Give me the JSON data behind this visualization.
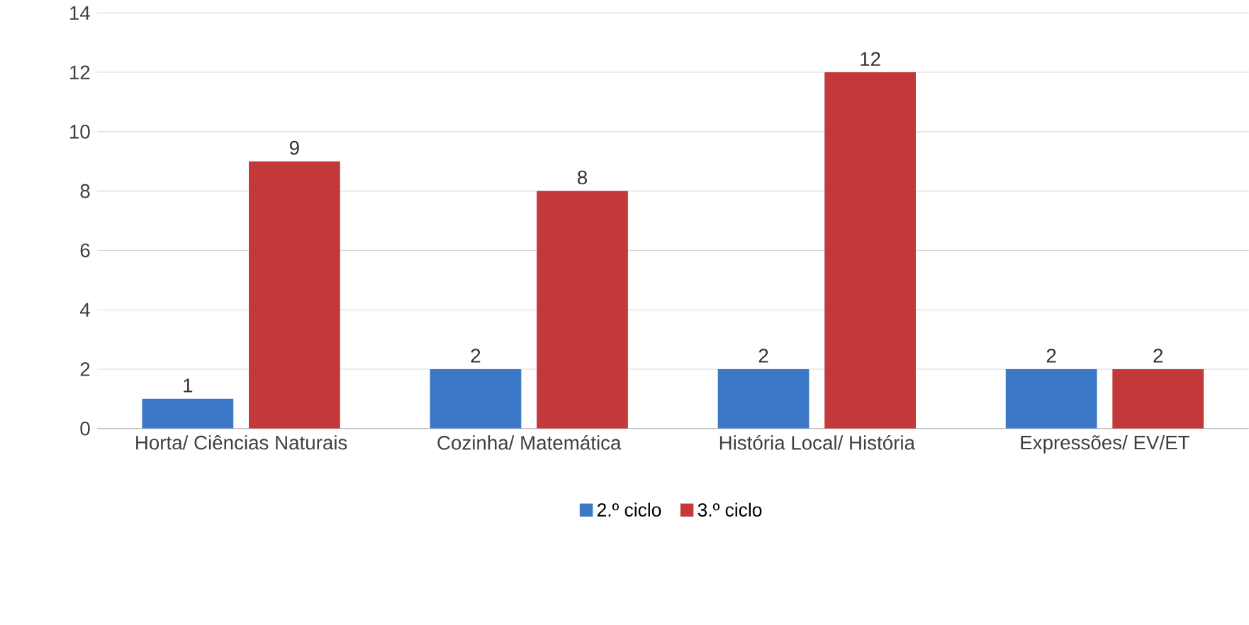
{
  "chart_data": {
    "type": "bar",
    "categories": [
      "Horta/ Ciências Naturais",
      "Cozinha/ Matemática",
      "História Local/ História",
      "Expressões/ EV/ET"
    ],
    "series": [
      {
        "name": "2.º ciclo",
        "color": "#3b78c6",
        "values": [
          1,
          2,
          2,
          2
        ]
      },
      {
        "name": "3.º ciclo",
        "color": "#c3393a",
        "values": [
          9,
          8,
          12,
          2
        ]
      }
    ],
    "ylim": [
      0,
      14
    ],
    "yticks": [
      0,
      2,
      4,
      6,
      8,
      10,
      12,
      14
    ],
    "grid": "y",
    "legend": "bottom",
    "data_labels": true
  }
}
